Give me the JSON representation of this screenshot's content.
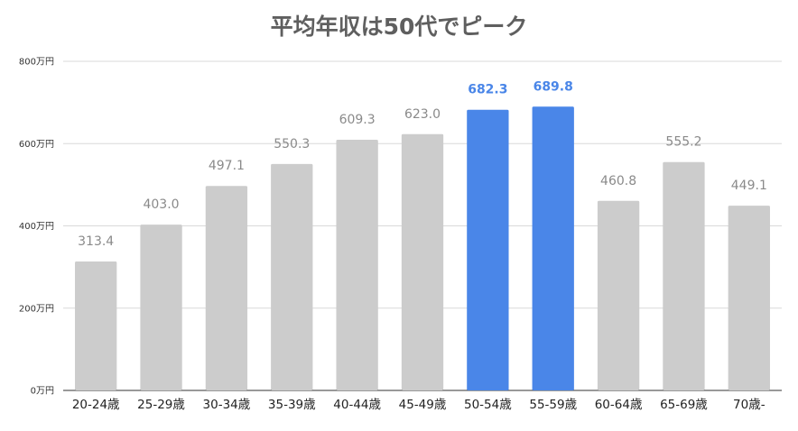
{
  "chart_data": {
    "type": "bar",
    "title": "平均年収は50代でピーク",
    "xlabel": "",
    "ylabel": "",
    "categories": [
      "20-24歳",
      "25-29歳",
      "30-34歳",
      "35-39歳",
      "40-44歳",
      "45-49歳",
      "50-54歳",
      "55-59歳",
      "60-64歳",
      "65-69歳",
      "70歳-"
    ],
    "values": [
      313.4,
      403.0,
      497.1,
      550.3,
      609.3,
      623.0,
      682.3,
      689.8,
      460.8,
      555.2,
      449.1
    ],
    "data_labels": [
      "313.4",
      "403.0",
      "497.1",
      "550.3",
      "609.3",
      "623.0",
      "682.3",
      "689.8",
      "460.8",
      "555.2",
      "449.1"
    ],
    "highlighted": [
      false,
      false,
      false,
      false,
      false,
      false,
      true,
      true,
      false,
      false,
      false
    ],
    "ylim": [
      0,
      800
    ],
    "yticks": [
      0,
      200,
      400,
      600,
      800
    ],
    "ytick_labels": [
      "0万円",
      "200万円",
      "400万円",
      "600万円",
      "800万円"
    ],
    "grid": true,
    "legend": "none",
    "colors": {
      "bar": "#cccccc",
      "highlight": "#4a86e8",
      "label": "#8a8a8a",
      "label_highlight": "#4a86e8",
      "gridline": "#d9d9d9",
      "title": "#5f5f5f"
    }
  }
}
